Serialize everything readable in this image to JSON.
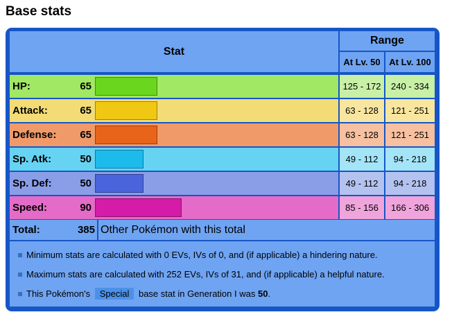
{
  "heading": "Base stats",
  "table": {
    "stat_header": "Stat",
    "range_header": "Range",
    "lv50_header": "At Lv. 50",
    "lv100_header": "At Lv. 100",
    "bar_max": 255,
    "stats": [
      {
        "label": "HP:",
        "value": "65",
        "lv50": "125 - 172",
        "lv100": "240 - 334",
        "row_color": "#a1e864",
        "bar_color": "#6ad61e",
        "range_color": "#c8f0a7"
      },
      {
        "label": "Attack:",
        "value": "65",
        "lv50": "63 - 128",
        "lv100": "121 - 251",
        "row_color": "#f3dc76",
        "bar_color": "#f0c814",
        "range_color": "#f8e6a0"
      },
      {
        "label": "Defense:",
        "value": "65",
        "lv50": "63 - 128",
        "lv100": "121 - 251",
        "row_color": "#f09a6a",
        "bar_color": "#e8641a",
        "range_color": "#f7c0a0"
      },
      {
        "label": "Sp. Atk:",
        "value": "50",
        "lv50": "49 - 112",
        "lv100": "94 - 218",
        "row_color": "#67d3f3",
        "bar_color": "#1cbbec",
        "range_color": "#a4e4f7"
      },
      {
        "label": "Sp. Def:",
        "value": "50",
        "lv50": "49 - 112",
        "lv100": "94 - 218",
        "row_color": "#8a9ee8",
        "bar_color": "#4a64dc",
        "range_color": "#b4c2f0"
      },
      {
        "label": "Speed:",
        "value": "90",
        "lv50": "85 - 156",
        "lv100": "166 - 306",
        "row_color": "#e46cc8",
        "bar_color": "#d41ca8",
        "range_color": "#efa4dc"
      }
    ],
    "total_label": "Total:",
    "total_value": "385",
    "total_text": "Other Pokémon with this total"
  },
  "notes": {
    "min": "Minimum stats are calculated with 0 EVs, IVs of 0, and (if applicable) a hindering nature.",
    "max": "Maximum stats are calculated with 252 EVs, IVs of 31, and (if applicable) a helpful nature.",
    "special_prefix": "This Pokémon's",
    "special_tag": "Special",
    "special_middle": "base stat in Generation I was",
    "special_value": "50",
    "special_suffix": "."
  }
}
